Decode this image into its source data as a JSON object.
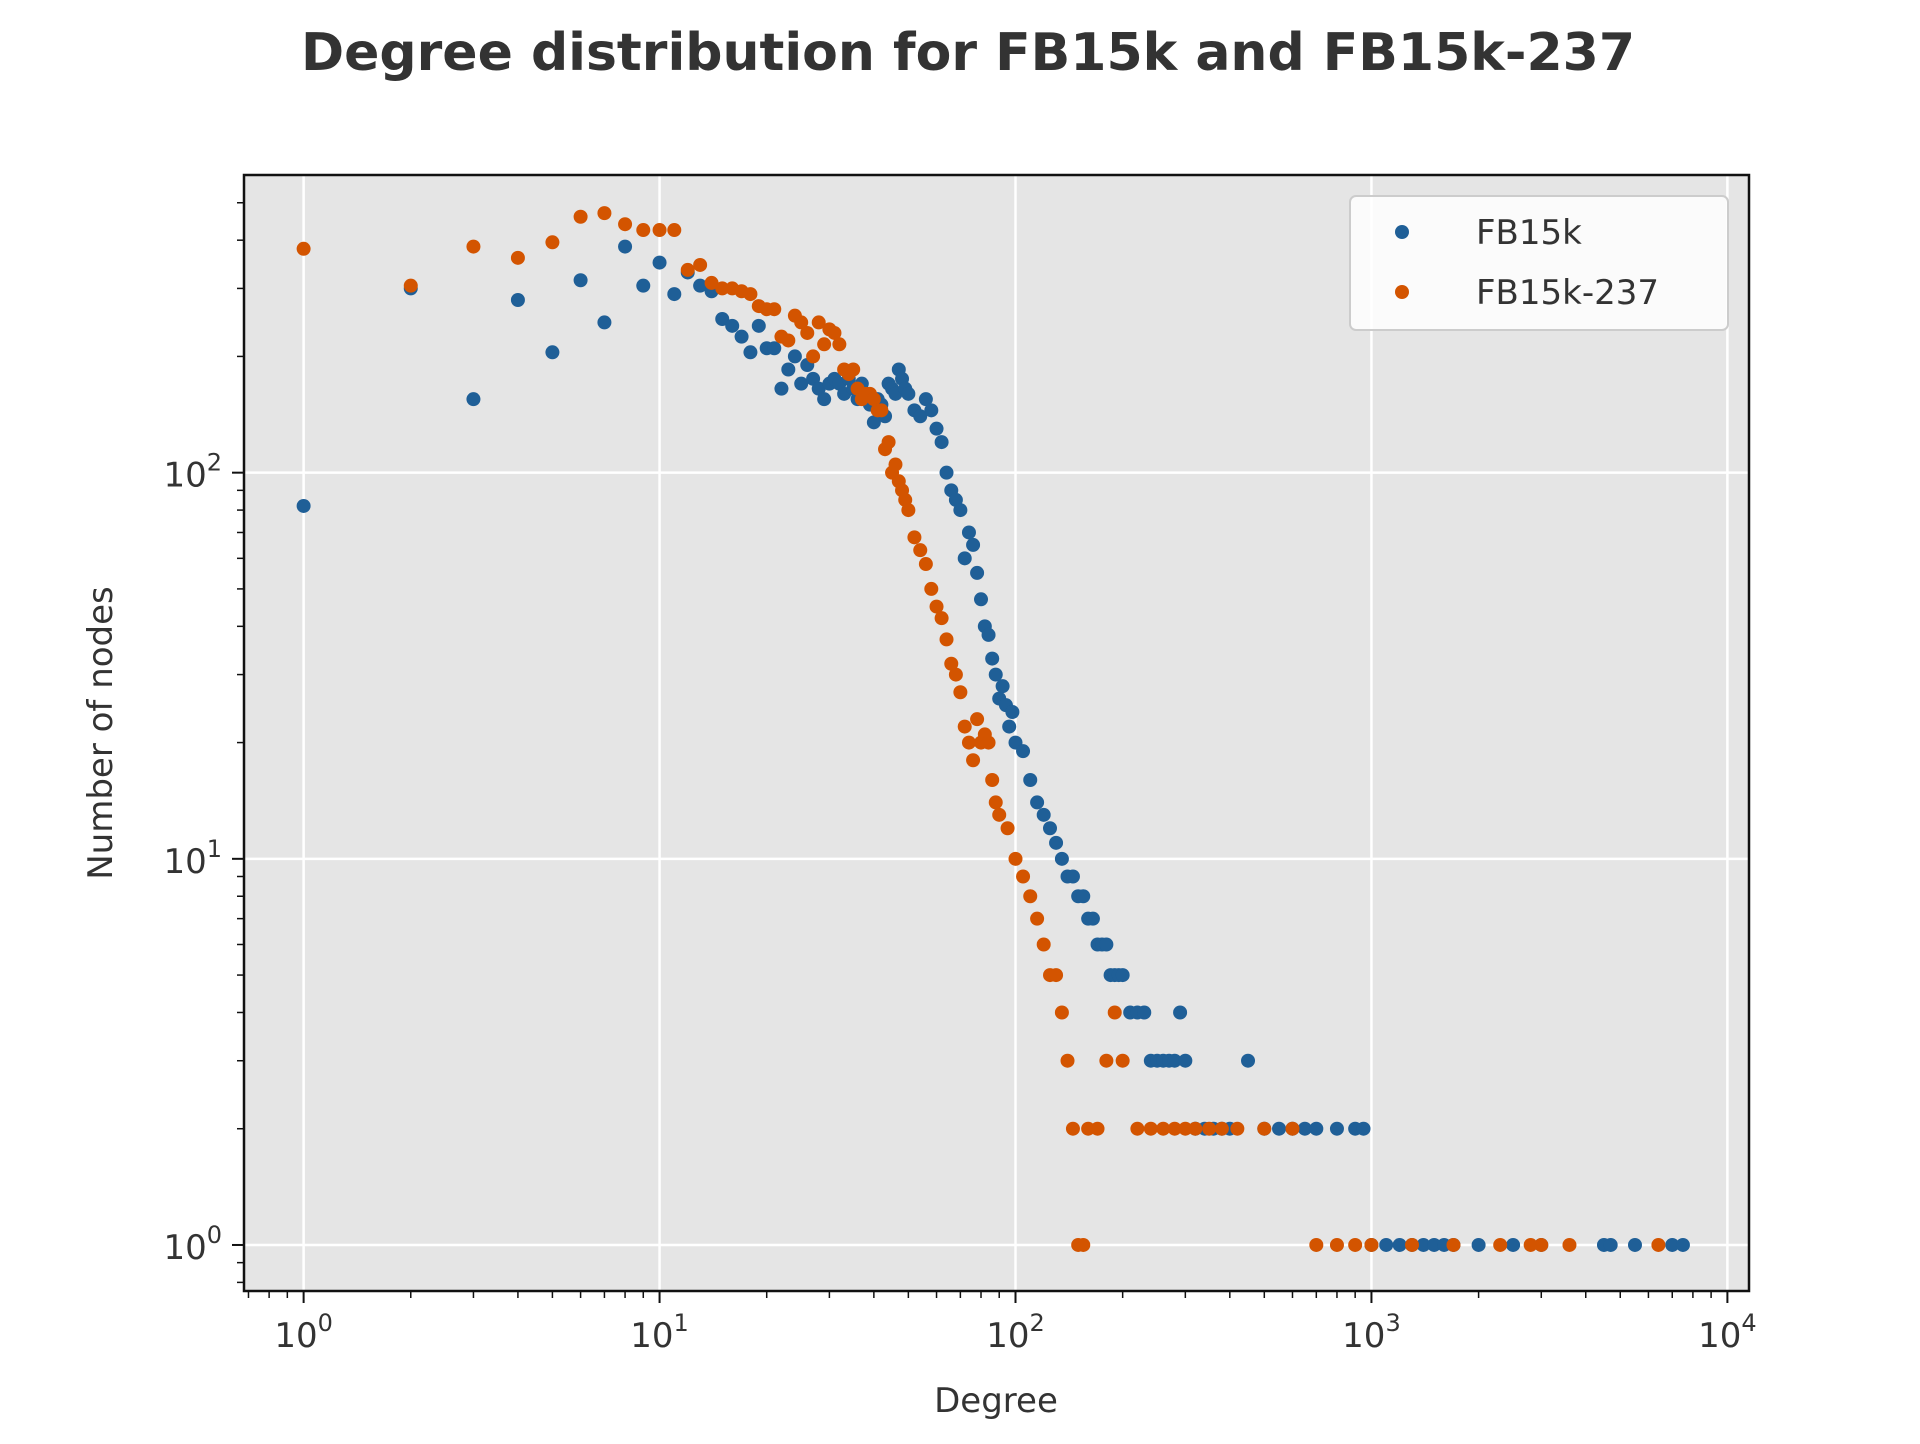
{
  "chart_data": {
    "type": "scatter",
    "title": "Degree distribution for FB15k and FB15k-237",
    "xlabel": "Degree",
    "ylabel": "Number of nodes",
    "xscale": "log",
    "yscale": "log",
    "xlim": [
      0.68,
      11500
    ],
    "ylim": [
      0.76,
      590
    ],
    "xticks": [
      {
        "value": 1,
        "base": "10",
        "exp": "0"
      },
      {
        "value": 10,
        "base": "10",
        "exp": "1"
      },
      {
        "value": 100,
        "base": "10",
        "exp": "2"
      },
      {
        "value": 1000,
        "base": "10",
        "exp": "3"
      },
      {
        "value": 10000,
        "base": "10",
        "exp": "4"
      }
    ],
    "yticks": [
      {
        "value": 1,
        "base": "10",
        "exp": "0"
      },
      {
        "value": 10,
        "base": "10",
        "exp": "1"
      },
      {
        "value": 100,
        "base": "10",
        "exp": "2"
      }
    ],
    "grid": true,
    "legend_position": "top-right",
    "background": "#e5e5e5",
    "series": [
      {
        "name": "FB15k",
        "color": "#1f5f97",
        "points": [
          [
            1,
            82
          ],
          [
            2,
            300
          ],
          [
            3,
            155
          ],
          [
            4,
            280
          ],
          [
            5,
            205
          ],
          [
            6,
            315
          ],
          [
            7,
            245
          ],
          [
            8,
            385
          ],
          [
            9,
            305
          ],
          [
            10,
            350
          ],
          [
            11,
            290
          ],
          [
            12,
            330
          ],
          [
            13,
            305
          ],
          [
            14,
            295
          ],
          [
            15,
            250
          ],
          [
            16,
            240
          ],
          [
            17,
            225
          ],
          [
            18,
            205
          ],
          [
            19,
            240
          ],
          [
            20,
            210
          ],
          [
            21,
            210
          ],
          [
            22,
            165
          ],
          [
            23,
            185
          ],
          [
            24,
            200
          ],
          [
            25,
            170
          ],
          [
            26,
            190
          ],
          [
            27,
            175
          ],
          [
            28,
            165
          ],
          [
            29,
            155
          ],
          [
            30,
            170
          ],
          [
            31,
            175
          ],
          [
            32,
            170
          ],
          [
            33,
            160
          ],
          [
            34,
            175
          ],
          [
            35,
            165
          ],
          [
            36,
            155
          ],
          [
            37,
            170
          ],
          [
            38,
            160
          ],
          [
            39,
            150
          ],
          [
            40,
            135
          ],
          [
            41,
            155
          ],
          [
            42,
            150
          ],
          [
            43,
            140
          ],
          [
            44,
            170
          ],
          [
            45,
            165
          ],
          [
            46,
            160
          ],
          [
            47,
            185
          ],
          [
            48,
            175
          ],
          [
            49,
            165
          ],
          [
            50,
            160
          ],
          [
            52,
            145
          ],
          [
            54,
            140
          ],
          [
            56,
            155
          ],
          [
            58,
            145
          ],
          [
            60,
            130
          ],
          [
            62,
            120
          ],
          [
            64,
            100
          ],
          [
            66,
            90
          ],
          [
            68,
            85
          ],
          [
            70,
            80
          ],
          [
            72,
            60
          ],
          [
            74,
            70
          ],
          [
            76,
            65
          ],
          [
            78,
            55
          ],
          [
            80,
            47
          ],
          [
            82,
            40
          ],
          [
            84,
            38
          ],
          [
            86,
            33
          ],
          [
            88,
            30
          ],
          [
            90,
            26
          ],
          [
            92,
            28
          ],
          [
            94,
            25
          ],
          [
            96,
            22
          ],
          [
            98,
            24
          ],
          [
            100,
            20
          ],
          [
            105,
            19
          ],
          [
            110,
            16
          ],
          [
            115,
            14
          ],
          [
            120,
            13
          ],
          [
            125,
            12
          ],
          [
            130,
            11
          ],
          [
            135,
            10
          ],
          [
            140,
            9
          ],
          [
            145,
            9
          ],
          [
            150,
            8
          ],
          [
            155,
            8
          ],
          [
            160,
            7
          ],
          [
            165,
            7
          ],
          [
            170,
            6
          ],
          [
            175,
            6
          ],
          [
            180,
            6
          ],
          [
            185,
            5
          ],
          [
            190,
            5
          ],
          [
            195,
            5
          ],
          [
            200,
            5
          ],
          [
            210,
            4
          ],
          [
            220,
            4
          ],
          [
            230,
            4
          ],
          [
            240,
            3
          ],
          [
            250,
            3
          ],
          [
            260,
            3
          ],
          [
            270,
            3
          ],
          [
            280,
            3
          ],
          [
            290,
            4
          ],
          [
            300,
            3
          ],
          [
            320,
            2
          ],
          [
            340,
            2
          ],
          [
            360,
            2
          ],
          [
            380,
            2
          ],
          [
            400,
            2
          ],
          [
            450,
            3
          ],
          [
            500,
            2
          ],
          [
            550,
            2
          ],
          [
            600,
            2
          ],
          [
            650,
            2
          ],
          [
            700,
            2
          ],
          [
            800,
            2
          ],
          [
            900,
            2
          ],
          [
            950,
            2
          ],
          [
            1000,
            1
          ],
          [
            1100,
            1
          ],
          [
            1200,
            1
          ],
          [
            1300,
            1
          ],
          [
            1400,
            1
          ],
          [
            1500,
            1
          ],
          [
            1600,
            1
          ],
          [
            1700,
            1
          ],
          [
            2000,
            1
          ],
          [
            2500,
            1
          ],
          [
            3000,
            1
          ],
          [
            4500,
            1
          ],
          [
            4700,
            1
          ],
          [
            5500,
            1
          ],
          [
            7000,
            1
          ],
          [
            7500,
            1
          ]
        ]
      },
      {
        "name": "FB15k-237",
        "color": "#d35400",
        "points": [
          [
            1,
            380
          ],
          [
            2,
            305
          ],
          [
            3,
            385
          ],
          [
            4,
            360
          ],
          [
            5,
            395
          ],
          [
            6,
            460
          ],
          [
            7,
            470
          ],
          [
            8,
            440
          ],
          [
            9,
            425
          ],
          [
            10,
            425
          ],
          [
            11,
            425
          ],
          [
            12,
            335
          ],
          [
            13,
            345
          ],
          [
            14,
            310
          ],
          [
            15,
            300
          ],
          [
            16,
            300
          ],
          [
            17,
            295
          ],
          [
            18,
            290
          ],
          [
            19,
            270
          ],
          [
            20,
            265
          ],
          [
            21,
            265
          ],
          [
            22,
            225
          ],
          [
            23,
            220
          ],
          [
            24,
            255
          ],
          [
            25,
            245
          ],
          [
            26,
            230
          ],
          [
            27,
            200
          ],
          [
            28,
            245
          ],
          [
            29,
            215
          ],
          [
            30,
            235
          ],
          [
            31,
            230
          ],
          [
            32,
            215
          ],
          [
            33,
            185
          ],
          [
            34,
            180
          ],
          [
            35,
            185
          ],
          [
            36,
            165
          ],
          [
            37,
            155
          ],
          [
            38,
            160
          ],
          [
            39,
            160
          ],
          [
            40,
            155
          ],
          [
            41,
            145
          ],
          [
            42,
            145
          ],
          [
            43,
            115
          ],
          [
            44,
            120
          ],
          [
            45,
            100
          ],
          [
            46,
            105
          ],
          [
            47,
            95
          ],
          [
            48,
            90
          ],
          [
            49,
            85
          ],
          [
            50,
            80
          ],
          [
            52,
            68
          ],
          [
            54,
            63
          ],
          [
            56,
            58
          ],
          [
            58,
            50
          ],
          [
            60,
            45
          ],
          [
            62,
            42
          ],
          [
            64,
            37
          ],
          [
            66,
            32
          ],
          [
            68,
            30
          ],
          [
            70,
            27
          ],
          [
            72,
            22
          ],
          [
            74,
            20
          ],
          [
            76,
            18
          ],
          [
            78,
            23
          ],
          [
            80,
            20
          ],
          [
            82,
            21
          ],
          [
            84,
            20
          ],
          [
            86,
            16
          ],
          [
            88,
            14
          ],
          [
            90,
            13
          ],
          [
            95,
            12
          ],
          [
            100,
            10
          ],
          [
            105,
            9
          ],
          [
            110,
            8
          ],
          [
            115,
            7
          ],
          [
            120,
            6
          ],
          [
            125,
            5
          ],
          [
            130,
            5
          ],
          [
            135,
            4
          ],
          [
            140,
            3
          ],
          [
            145,
            2
          ],
          [
            150,
            1
          ],
          [
            155,
            1
          ],
          [
            160,
            2
          ],
          [
            170,
            2
          ],
          [
            180,
            3
          ],
          [
            190,
            4
          ],
          [
            200,
            3
          ],
          [
            220,
            2
          ],
          [
            240,
            2
          ],
          [
            260,
            2
          ],
          [
            280,
            2
          ],
          [
            300,
            2
          ],
          [
            320,
            2
          ],
          [
            350,
            2
          ],
          [
            380,
            2
          ],
          [
            420,
            2
          ],
          [
            500,
            2
          ],
          [
            600,
            2
          ],
          [
            700,
            1
          ],
          [
            800,
            1
          ],
          [
            900,
            1
          ],
          [
            1000,
            1
          ],
          [
            1300,
            1
          ],
          [
            1700,
            1
          ],
          [
            2300,
            1
          ],
          [
            2800,
            1
          ],
          [
            3000,
            1
          ],
          [
            3600,
            1
          ],
          [
            6400,
            1
          ]
        ]
      }
    ]
  }
}
